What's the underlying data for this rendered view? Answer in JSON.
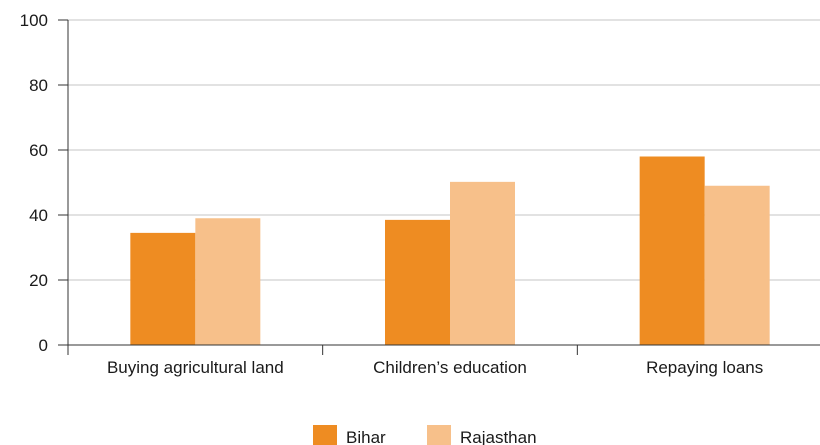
{
  "chart_data": {
    "type": "bar",
    "title": "",
    "xlabel": "",
    "ylabel": "",
    "ylim": [
      0,
      100
    ],
    "yticks": [
      0,
      20,
      40,
      60,
      80,
      100
    ],
    "grid": true,
    "legend_position": "bottom-center",
    "categories": [
      "Buying agricultural land",
      "Children’s education",
      "Repaying loans"
    ],
    "series": [
      {
        "name": "Bihar",
        "color": "#ee8c22",
        "values": [
          34.5,
          38.5,
          58
        ]
      },
      {
        "name": "Rajasthan",
        "color": "#f7c08a",
        "values": [
          39,
          50.2,
          49
        ]
      }
    ]
  }
}
